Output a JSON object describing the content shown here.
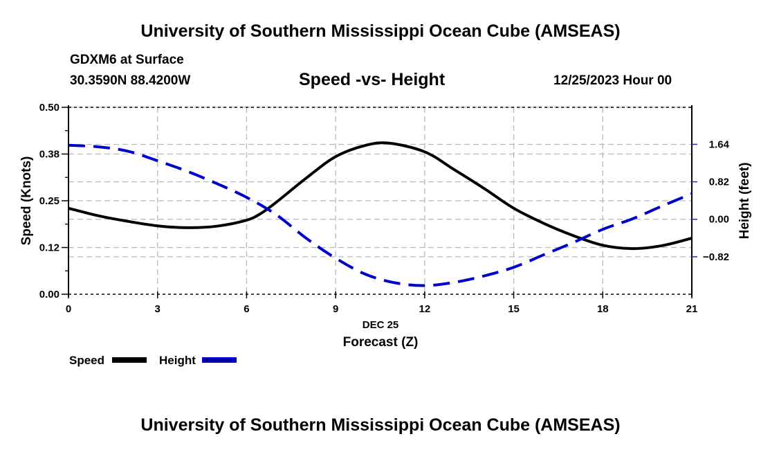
{
  "header": {
    "title_top": "University of Southern Mississippi Ocean Cube (AMSEAS)",
    "title_bottom": "University of Southern Mississippi Ocean Cube (AMSEAS)",
    "station": "GDXM6 at Surface",
    "location": "30.3590N  88.4200W",
    "datetime": "12/25/2023 Hour 00"
  },
  "chart_data": {
    "type": "line",
    "title": "Speed -vs- Height",
    "xlabel": "Forecast (Z)",
    "xlabel_date": "DEC 25",
    "ylabel": "Speed (Knots)",
    "y2label": "Height (feet)",
    "xlim": [
      0,
      21
    ],
    "ylim": [
      0,
      0.5
    ],
    "y2lim": [
      -1.64,
      2.45
    ],
    "x_ticks": [
      "0",
      "3",
      "6",
      "9",
      "12",
      "15",
      "18",
      "21"
    ],
    "x_tick_values": [
      0,
      3,
      6,
      9,
      12,
      15,
      18,
      21
    ],
    "y_ticks": [
      "0.00",
      "0.12",
      "0.25",
      "0.38",
      "0.50"
    ],
    "y_tick_values": [
      0.0,
      0.125,
      0.25,
      0.375,
      0.5
    ],
    "y2_ticks": [
      "−0.82",
      "0.00",
      "0.82",
      "1.64"
    ],
    "y2_tick_values": [
      -0.82,
      0.0,
      0.82,
      1.64
    ],
    "grid": true,
    "legend_position": "bottom-left",
    "series": [
      {
        "name": "Speed",
        "axis": "left",
        "color": "#000000",
        "style": "solid",
        "x": [
          0,
          1,
          2,
          3,
          4,
          5,
          6,
          6.5,
          7,
          8,
          9,
          10,
          10.8,
          12,
          13,
          14,
          15,
          16,
          17,
          18,
          19,
          20,
          21
        ],
        "values": [
          0.23,
          0.21,
          0.195,
          0.183,
          0.178,
          0.182,
          0.198,
          0.217,
          0.246,
          0.31,
          0.368,
          0.398,
          0.404,
          0.381,
          0.333,
          0.283,
          0.23,
          0.19,
          0.157,
          0.131,
          0.122,
          0.13,
          0.15
        ]
      },
      {
        "name": "Height",
        "axis": "right",
        "color": "#0000cc",
        "style": "dashed",
        "x": [
          0,
          1,
          2,
          3,
          4,
          5,
          6,
          7,
          8,
          9,
          10,
          11,
          12,
          13,
          14,
          15,
          16,
          17,
          18,
          19,
          20,
          21
        ],
        "values": [
          1.62,
          1.585,
          1.49,
          1.28,
          1.05,
          0.78,
          0.48,
          0.1,
          -0.41,
          -0.85,
          -1.2,
          -1.39,
          -1.45,
          -1.38,
          -1.24,
          -1.05,
          -0.78,
          -0.51,
          -0.22,
          0.01,
          0.29,
          0.56
        ]
      }
    ]
  }
}
